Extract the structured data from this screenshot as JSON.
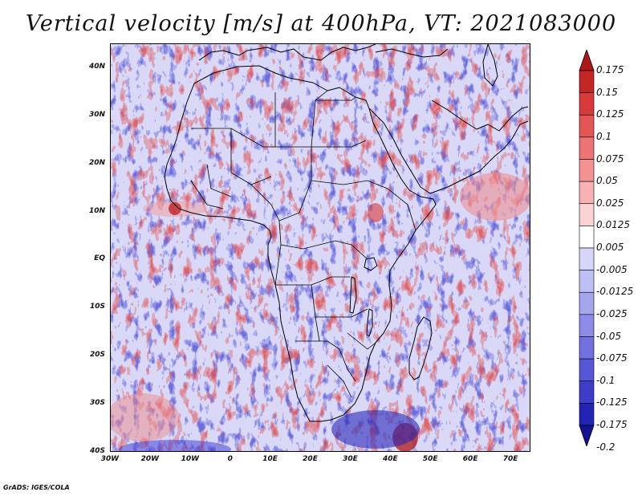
{
  "title": "Vertical velocity [m/s] at 400hPa, VT: 2021083000",
  "credit": "GrADS: IGES/COLA",
  "map": {
    "projection": "lat-lon",
    "lon_range": [
      -30,
      75
    ],
    "lat_range": [
      -40,
      45
    ],
    "lat_labels": [
      "40N",
      "30N",
      "20N",
      "10N",
      "EQ",
      "10S",
      "20S",
      "30S",
      "40S"
    ],
    "lat_values": [
      40,
      30,
      20,
      10,
      0,
      -10,
      -20,
      -30,
      -40
    ],
    "lon_labels": [
      "30W",
      "20W",
      "10W",
      "0",
      "10E",
      "20E",
      "30E",
      "40E",
      "50E",
      "60E",
      "70E"
    ],
    "lon_values": [
      -30,
      -20,
      -10,
      0,
      10,
      20,
      30,
      40,
      50,
      60,
      70
    ],
    "field": "vertical velocity",
    "field_level": "400hPa",
    "units": "m/s"
  },
  "colorbar": {
    "labels": [
      "0.175",
      "0.15",
      "0.125",
      "0.1",
      "0.075",
      "0.05",
      "0.025",
      "0.0125",
      "0.005",
      "-0.005",
      "-0.0125",
      "-0.025",
      "-0.05",
      "-0.075",
      "-0.1",
      "-0.125",
      "-0.175",
      "-0.2"
    ],
    "colors": [
      "#b01818",
      "#c42626",
      "#d63a3a",
      "#e45656",
      "#ec7474",
      "#f29292",
      "#f7b3b3",
      "#fbd2d2",
      "#ffffff",
      "#d6d6f8",
      "#bfbff3",
      "#a6a6ee",
      "#8c8ce8",
      "#7171e0",
      "#5757d6",
      "#3d3dca",
      "#2222b4",
      "#121296"
    ],
    "extend": "both"
  }
}
